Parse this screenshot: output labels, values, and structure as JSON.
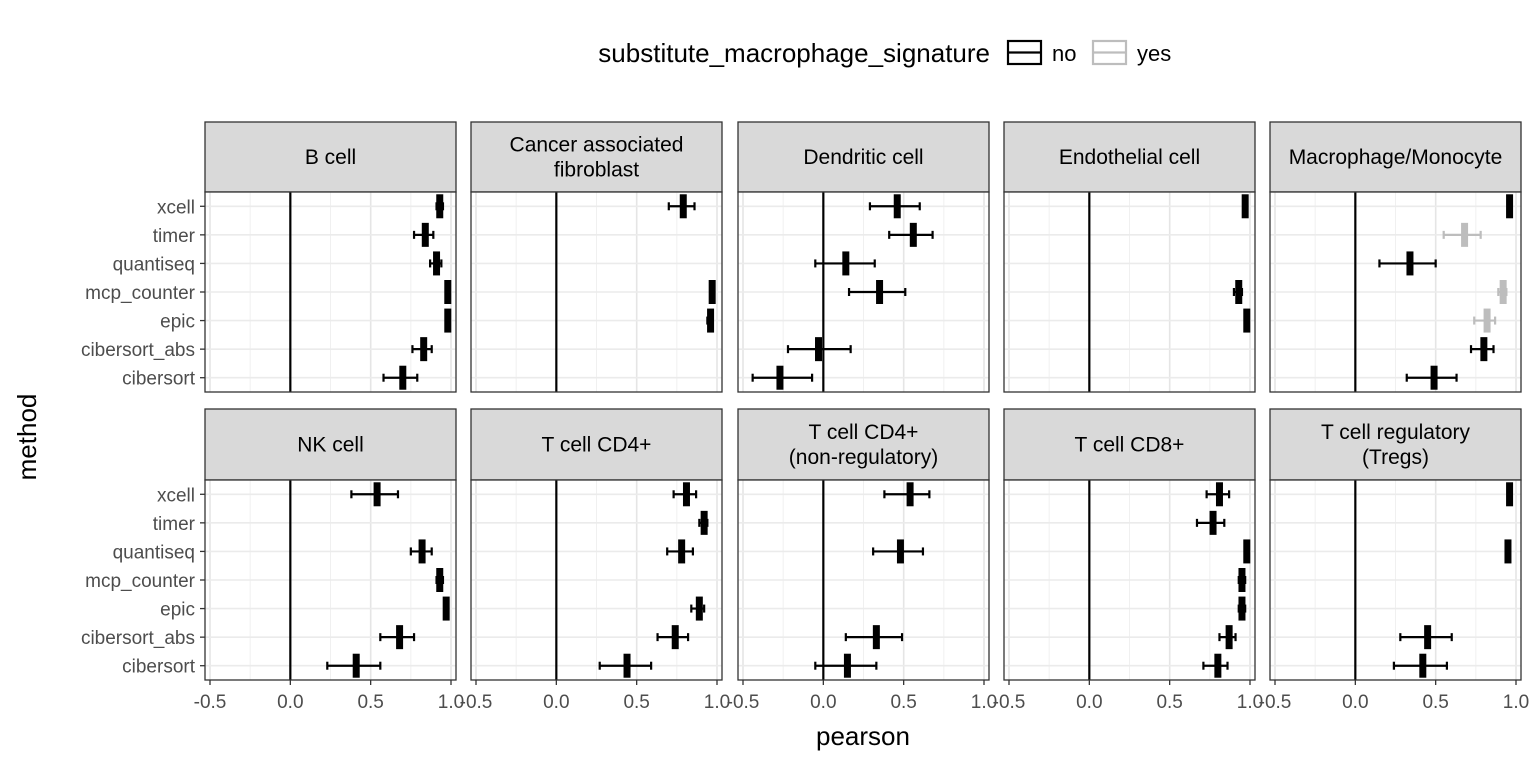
{
  "chart_data": {
    "type": "scatter",
    "subtype": "point-range (faceted forest plot)",
    "legend": {
      "title": "substitute_macrophage_signature",
      "placement": "top",
      "entries": [
        {
          "label": "no",
          "color": "#000000"
        },
        {
          "label": "yes",
          "color": "#bdbdbd"
        }
      ]
    },
    "xlabel": "pearson",
    "ylabel": "method",
    "xlim": [
      -0.5,
      1.0
    ],
    "x_ticks": [
      "-0.5",
      "0.0",
      "0.5",
      "1.0"
    ],
    "x_tick_values": [
      -0.5,
      0.0,
      0.5,
      1.0
    ],
    "reference_line_x": 0,
    "grid": true,
    "methods": [
      "xcell",
      "timer",
      "quantiseq",
      "mcp_counter",
      "epic",
      "cibersort_abs",
      "cibersort"
    ],
    "panels": [
      {
        "title": [
          "B cell"
        ],
        "points": [
          {
            "method": "xcell",
            "x": 0.93,
            "lo": 0.91,
            "hi": 0.95,
            "substitute": "no"
          },
          {
            "method": "timer",
            "x": 0.84,
            "lo": 0.77,
            "hi": 0.89,
            "substitute": "no"
          },
          {
            "method": "quantiseq",
            "x": 0.91,
            "lo": 0.87,
            "hi": 0.94,
            "substitute": "no"
          },
          {
            "method": "mcp_counter",
            "x": 0.98,
            "lo": 0.97,
            "hi": 0.99,
            "substitute": "no"
          },
          {
            "method": "epic",
            "x": 0.98,
            "lo": 0.97,
            "hi": 0.99,
            "substitute": "no"
          },
          {
            "method": "cibersort_abs",
            "x": 0.83,
            "lo": 0.76,
            "hi": 0.88,
            "substitute": "no"
          },
          {
            "method": "cibersort",
            "x": 0.7,
            "lo": 0.58,
            "hi": 0.79,
            "substitute": "no"
          }
        ]
      },
      {
        "title": [
          "Cancer associated",
          "fibroblast"
        ],
        "points": [
          {
            "method": "xcell",
            "x": 0.79,
            "lo": 0.7,
            "hi": 0.86,
            "substitute": "no"
          },
          {
            "method": "mcp_counter",
            "x": 0.97,
            "lo": 0.96,
            "hi": 0.98,
            "substitute": "no"
          },
          {
            "method": "epic",
            "x": 0.96,
            "lo": 0.94,
            "hi": 0.97,
            "substitute": "no"
          }
        ]
      },
      {
        "title": [
          "Dendritic cell"
        ],
        "points": [
          {
            "method": "xcell",
            "x": 0.46,
            "lo": 0.29,
            "hi": 0.6,
            "substitute": "no"
          },
          {
            "method": "timer",
            "x": 0.56,
            "lo": 0.41,
            "hi": 0.68,
            "substitute": "no"
          },
          {
            "method": "quantiseq",
            "x": 0.14,
            "lo": -0.05,
            "hi": 0.32,
            "substitute": "no"
          },
          {
            "method": "mcp_counter",
            "x": 0.35,
            "lo": 0.16,
            "hi": 0.51,
            "substitute": "no"
          },
          {
            "method": "cibersort_abs",
            "x": -0.03,
            "lo": -0.22,
            "hi": 0.17,
            "substitute": "no"
          },
          {
            "method": "cibersort",
            "x": -0.27,
            "lo": -0.44,
            "hi": -0.07,
            "substitute": "no"
          }
        ]
      },
      {
        "title": [
          "Endothelial cell"
        ],
        "points": [
          {
            "method": "xcell",
            "x": 0.97,
            "lo": 0.96,
            "hi": 0.98,
            "substitute": "no"
          },
          {
            "method": "mcp_counter",
            "x": 0.93,
            "lo": 0.9,
            "hi": 0.95,
            "substitute": "no"
          },
          {
            "method": "epic",
            "x": 0.98,
            "lo": 0.97,
            "hi": 0.99,
            "substitute": "no"
          }
        ]
      },
      {
        "title": [
          "Macrophage/Monocyte"
        ],
        "points": [
          {
            "method": "xcell",
            "x": 0.96,
            "lo": 0.95,
            "hi": 0.97,
            "substitute": "no"
          },
          {
            "method": "timer",
            "x": 0.68,
            "lo": 0.55,
            "hi": 0.78,
            "substitute": "yes"
          },
          {
            "method": "quantiseq",
            "x": 0.34,
            "lo": 0.15,
            "hi": 0.5,
            "substitute": "no"
          },
          {
            "method": "mcp_counter",
            "x": 0.92,
            "lo": 0.89,
            "hi": 0.94,
            "substitute": "yes"
          },
          {
            "method": "epic",
            "x": 0.82,
            "lo": 0.74,
            "hi": 0.87,
            "substitute": "yes"
          },
          {
            "method": "cibersort_abs",
            "x": 0.8,
            "lo": 0.72,
            "hi": 0.86,
            "substitute": "no"
          },
          {
            "method": "cibersort",
            "x": 0.49,
            "lo": 0.32,
            "hi": 0.63,
            "substitute": "no"
          }
        ]
      },
      {
        "title": [
          "NK cell"
        ],
        "points": [
          {
            "method": "xcell",
            "x": 0.54,
            "lo": 0.38,
            "hi": 0.67,
            "substitute": "no"
          },
          {
            "method": "quantiseq",
            "x": 0.82,
            "lo": 0.75,
            "hi": 0.88,
            "substitute": "no"
          },
          {
            "method": "mcp_counter",
            "x": 0.93,
            "lo": 0.91,
            "hi": 0.95,
            "substitute": "no"
          },
          {
            "method": "epic",
            "x": 0.97,
            "lo": 0.96,
            "hi": 0.98,
            "substitute": "no"
          },
          {
            "method": "cibersort_abs",
            "x": 0.68,
            "lo": 0.56,
            "hi": 0.77,
            "substitute": "no"
          },
          {
            "method": "cibersort",
            "x": 0.41,
            "lo": 0.23,
            "hi": 0.56,
            "substitute": "no"
          }
        ]
      },
      {
        "title": [
          "T cell CD4+"
        ],
        "points": [
          {
            "method": "xcell",
            "x": 0.81,
            "lo": 0.73,
            "hi": 0.87,
            "substitute": "no"
          },
          {
            "method": "timer",
            "x": 0.92,
            "lo": 0.89,
            "hi": 0.94,
            "substitute": "no"
          },
          {
            "method": "quantiseq",
            "x": 0.78,
            "lo": 0.69,
            "hi": 0.85,
            "substitute": "no"
          },
          {
            "method": "epic",
            "x": 0.89,
            "lo": 0.84,
            "hi": 0.92,
            "substitute": "no"
          },
          {
            "method": "cibersort_abs",
            "x": 0.74,
            "lo": 0.63,
            "hi": 0.82,
            "substitute": "no"
          },
          {
            "method": "cibersort",
            "x": 0.44,
            "lo": 0.27,
            "hi": 0.59,
            "substitute": "no"
          }
        ]
      },
      {
        "title": [
          "T cell CD4+",
          "(non-regulatory)"
        ],
        "points": [
          {
            "method": "xcell",
            "x": 0.54,
            "lo": 0.38,
            "hi": 0.66,
            "substitute": "no"
          },
          {
            "method": "quantiseq",
            "x": 0.48,
            "lo": 0.31,
            "hi": 0.62,
            "substitute": "no"
          },
          {
            "method": "cibersort_abs",
            "x": 0.33,
            "lo": 0.14,
            "hi": 0.49,
            "substitute": "no"
          },
          {
            "method": "cibersort",
            "x": 0.15,
            "lo": -0.05,
            "hi": 0.33,
            "substitute": "no"
          }
        ]
      },
      {
        "title": [
          "T cell CD8+"
        ],
        "points": [
          {
            "method": "xcell",
            "x": 0.81,
            "lo": 0.73,
            "hi": 0.87,
            "substitute": "no"
          },
          {
            "method": "timer",
            "x": 0.77,
            "lo": 0.67,
            "hi": 0.84,
            "substitute": "no"
          },
          {
            "method": "quantiseq",
            "x": 0.98,
            "lo": 0.97,
            "hi": 0.99,
            "substitute": "no"
          },
          {
            "method": "mcp_counter",
            "x": 0.95,
            "lo": 0.93,
            "hi": 0.97,
            "substitute": "no"
          },
          {
            "method": "epic",
            "x": 0.95,
            "lo": 0.93,
            "hi": 0.97,
            "substitute": "no"
          },
          {
            "method": "cibersort_abs",
            "x": 0.87,
            "lo": 0.81,
            "hi": 0.91,
            "substitute": "no"
          },
          {
            "method": "cibersort",
            "x": 0.8,
            "lo": 0.71,
            "hi": 0.86,
            "substitute": "no"
          }
        ]
      },
      {
        "title": [
          "T cell regulatory",
          "(Tregs)"
        ],
        "points": [
          {
            "method": "xcell",
            "x": 0.96,
            "lo": 0.95,
            "hi": 0.97,
            "substitute": "no"
          },
          {
            "method": "quantiseq",
            "x": 0.95,
            "lo": 0.94,
            "hi": 0.96,
            "substitute": "no"
          },
          {
            "method": "cibersort_abs",
            "x": 0.45,
            "lo": 0.28,
            "hi": 0.6,
            "substitute": "no"
          },
          {
            "method": "cibersort",
            "x": 0.42,
            "lo": 0.24,
            "hi": 0.57,
            "substitute": "no"
          }
        ]
      }
    ]
  }
}
